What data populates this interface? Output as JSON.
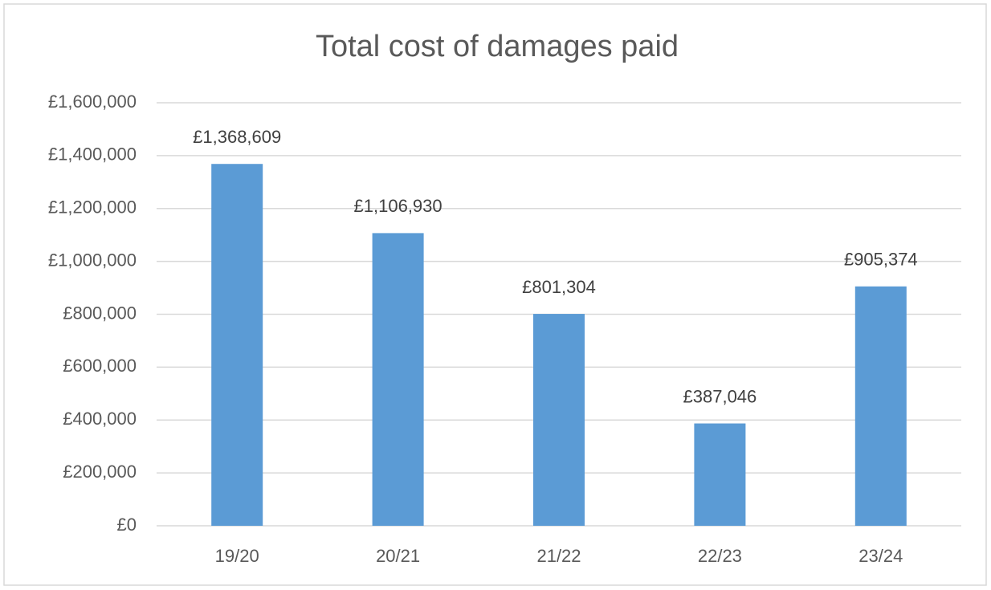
{
  "chart_data": {
    "type": "bar",
    "title": "Total cost of damages paid",
    "categories": [
      "19/20",
      "20/21",
      "21/22",
      "22/23",
      "23/24"
    ],
    "values": [
      1368609,
      1106930,
      801304,
      387046,
      905374
    ],
    "value_labels": [
      "£1,368,609",
      "£1,106,930",
      "£801,304",
      "£387,046",
      "£905,374"
    ],
    "color": "#5b9bd5",
    "ylim": [
      0,
      1600000
    ],
    "yticks": [
      {
        "value": 0,
        "label": "£0"
      },
      {
        "value": 200000,
        "label": "£200,000"
      },
      {
        "value": 400000,
        "label": "£400,000"
      },
      {
        "value": 600000,
        "label": "£600,000"
      },
      {
        "value": 800000,
        "label": "£800,000"
      },
      {
        "value": 1000000,
        "label": "£1,000,000"
      },
      {
        "value": 1200000,
        "label": "£1,200,000"
      },
      {
        "value": 1400000,
        "label": "£1,400,000"
      },
      {
        "value": 1600000,
        "label": "£1,600,000"
      }
    ],
    "grid": true
  }
}
